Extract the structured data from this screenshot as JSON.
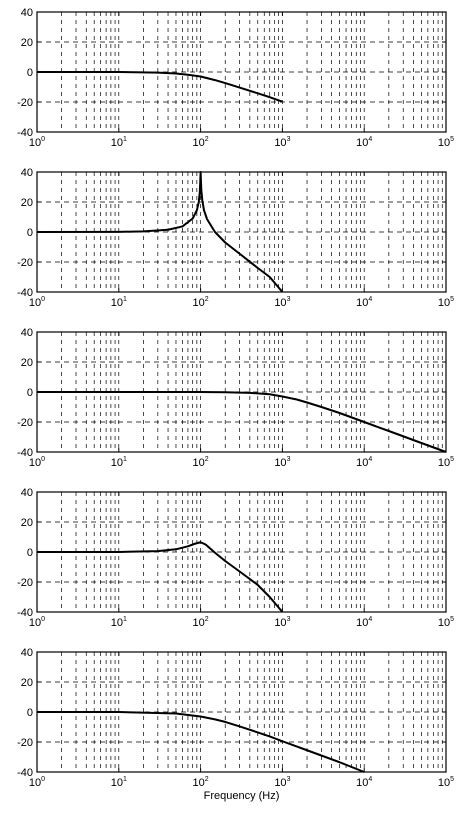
{
  "chart_data": [
    {
      "type": "line",
      "xscale": "log",
      "xlim": [
        1,
        100000
      ],
      "ylim": [
        -40,
        40
      ],
      "grid": true,
      "x_ticks": [
        1,
        10,
        100,
        1000,
        10000,
        100000
      ],
      "x_tick_labels": [
        "10^0",
        "10^1",
        "10^2",
        "10^3",
        "10^4",
        "10^5"
      ],
      "y_ticks": [
        -40,
        -20,
        0,
        20,
        40
      ],
      "y_tick_labels": [
        "-40",
        "-20",
        "0",
        "20",
        "40"
      ],
      "xlabel": "",
      "series": [
        {
          "x": [
            1,
            10,
            30,
            50,
            70,
            100,
            150,
            200,
            300,
            500,
            700,
            1000
          ],
          "y": [
            0,
            0,
            -0.4,
            -1.0,
            -1.8,
            -3,
            -5.4,
            -7.4,
            -10.4,
            -14.2,
            -16.8,
            -19.8
          ]
        }
      ]
    },
    {
      "type": "line",
      "xscale": "log",
      "xlim": [
        1,
        100000
      ],
      "ylim": [
        -40,
        40
      ],
      "grid": true,
      "x_ticks": [
        1,
        10,
        100,
        1000,
        10000,
        100000
      ],
      "x_tick_labels": [
        "10^0",
        "10^1",
        "10^2",
        "10^3",
        "10^4",
        "10^5"
      ],
      "y_ticks": [
        -40,
        -20,
        0,
        20,
        40
      ],
      "y_tick_labels": [
        "-40",
        "-20",
        "0",
        "20",
        "40"
      ],
      "xlabel": "",
      "series": [
        {
          "x": [
            1,
            10,
            20,
            40,
            60,
            80,
            90,
            95,
            98,
            100,
            102,
            105,
            110,
            120,
            150,
            200,
            300,
            500,
            700,
            1000
          ],
          "y": [
            0,
            0.1,
            0.4,
            1.5,
            3.7,
            9.0,
            14.5,
            20,
            27,
            40,
            28,
            21,
            14.5,
            8.5,
            0,
            -7,
            -14.5,
            -24,
            -30,
            -40
          ]
        }
      ]
    },
    {
      "type": "line",
      "xscale": "log",
      "xlim": [
        1,
        100000
      ],
      "ylim": [
        -40,
        40
      ],
      "grid": true,
      "x_ticks": [
        1,
        10,
        100,
        1000,
        10000,
        100000
      ],
      "x_tick_labels": [
        "10^0",
        "10^1",
        "10^2",
        "10^3",
        "10^4",
        "10^5"
      ],
      "y_ticks": [
        -40,
        -20,
        0,
        20,
        40
      ],
      "y_tick_labels": [
        "-40",
        "-20",
        "0",
        "20",
        "40"
      ],
      "xlabel": "",
      "series": [
        {
          "x": [
            1,
            10,
            100,
            200,
            400,
            700,
            1000,
            1500,
            2000,
            3000,
            5000,
            10000,
            20000,
            50000,
            100000
          ],
          "y": [
            0,
            0,
            0,
            -0.2,
            -0.6,
            -1.5,
            -3,
            -5,
            -7,
            -10,
            -14,
            -20,
            -26,
            -34,
            -40
          ]
        }
      ]
    },
    {
      "type": "line",
      "xscale": "log",
      "xlim": [
        1,
        100000
      ],
      "ylim": [
        -40,
        40
      ],
      "grid": true,
      "x_ticks": [
        1,
        10,
        100,
        1000,
        10000,
        100000
      ],
      "x_tick_labels": [
        "10^0",
        "10^1",
        "10^2",
        "10^3",
        "10^4",
        "10^5"
      ],
      "y_ticks": [
        -40,
        -20,
        0,
        20,
        40
      ],
      "y_tick_labels": [
        "-40",
        "-20",
        "0",
        "20",
        "40"
      ],
      "xlabel": "",
      "series": [
        {
          "x": [
            1,
            10,
            30,
            50,
            70,
            85,
            100,
            115,
            130,
            150,
            200,
            300,
            500,
            700,
            1000
          ],
          "y": [
            0,
            0,
            0.6,
            1.8,
            3.8,
            5.5,
            6.5,
            5.0,
            2.5,
            -0.5,
            -6,
            -13,
            -22,
            -30,
            -40
          ]
        }
      ]
    },
    {
      "type": "line",
      "xscale": "log",
      "xlim": [
        1,
        100000
      ],
      "ylim": [
        -40,
        40
      ],
      "grid": true,
      "x_ticks": [
        1,
        10,
        100,
        1000,
        10000,
        100000
      ],
      "x_tick_labels": [
        "10^0",
        "10^1",
        "10^2",
        "10^3",
        "10^4",
        "10^5"
      ],
      "y_ticks": [
        -40,
        -20,
        0,
        20,
        40
      ],
      "y_tick_labels": [
        "-40",
        "-20",
        "0",
        "20",
        "40"
      ],
      "xlabel": "Frequency (Hz)",
      "series": [
        {
          "x": [
            1,
            10,
            50,
            100,
            150,
            200,
            300,
            500,
            700,
            1000,
            2000,
            5000,
            10000
          ],
          "y": [
            0,
            0,
            -1,
            -3,
            -4.9,
            -6.6,
            -9.6,
            -13.6,
            -16.3,
            -19.5,
            -25.5,
            -33.5,
            -40
          ]
        }
      ]
    }
  ]
}
